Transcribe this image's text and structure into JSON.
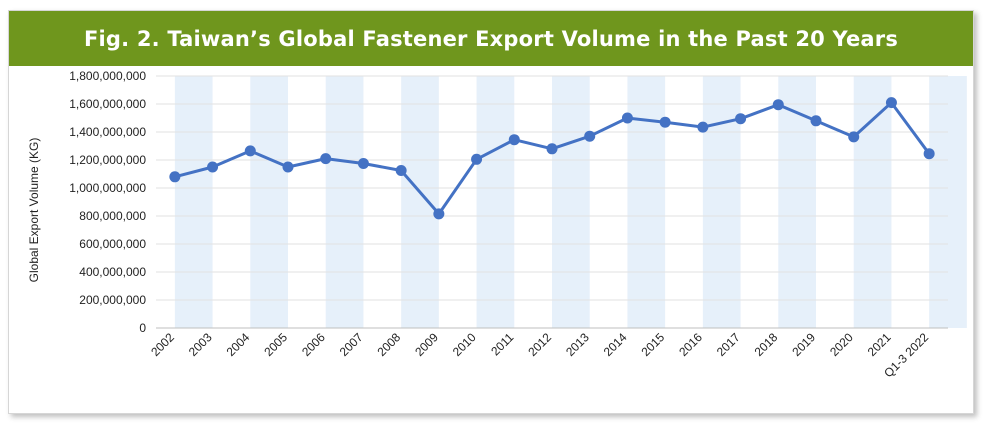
{
  "chart_data": {
    "type": "line",
    "title": "Fig. 2. Taiwan’s Global  Fastener Export Volume in the Past 20 Years",
    "xlabel": "",
    "ylabel": "Global Export Volume (KG)",
    "categories": [
      "2002",
      "2003",
      "2004",
      "2005",
      "2006",
      "2007",
      "2008",
      "2009",
      "2010",
      "2011",
      "2012",
      "2013",
      "2014",
      "2015",
      "2016",
      "2017",
      "2018",
      "2019",
      "2020",
      "2021",
      "Q1-3 2022"
    ],
    "series": [
      {
        "values": [
          1080000000,
          1150000000,
          1265000000,
          1150000000,
          1210000000,
          1175000000,
          1125000000,
          815000000,
          1205000000,
          1345000000,
          1280000000,
          1370000000,
          1500000000,
          1470000000,
          1435000000,
          1495000000,
          1595000000,
          1480000000,
          1365000000,
          1610000000,
          1245000000
        ]
      }
    ],
    "ylim": [
      0,
      1800000000
    ],
    "yticks": [
      "0",
      "200,000,000",
      "400,000,000",
      "600,000,000",
      "800,000,000",
      "1,000,000,000",
      "1,200,000,000",
      "1,400,000,000",
      "1,600,000,000",
      "1,800,000,000"
    ],
    "grid": true,
    "line_color": "#4472c4",
    "band_color": "#e6f0fa",
    "title_bg": "#6f961d"
  }
}
